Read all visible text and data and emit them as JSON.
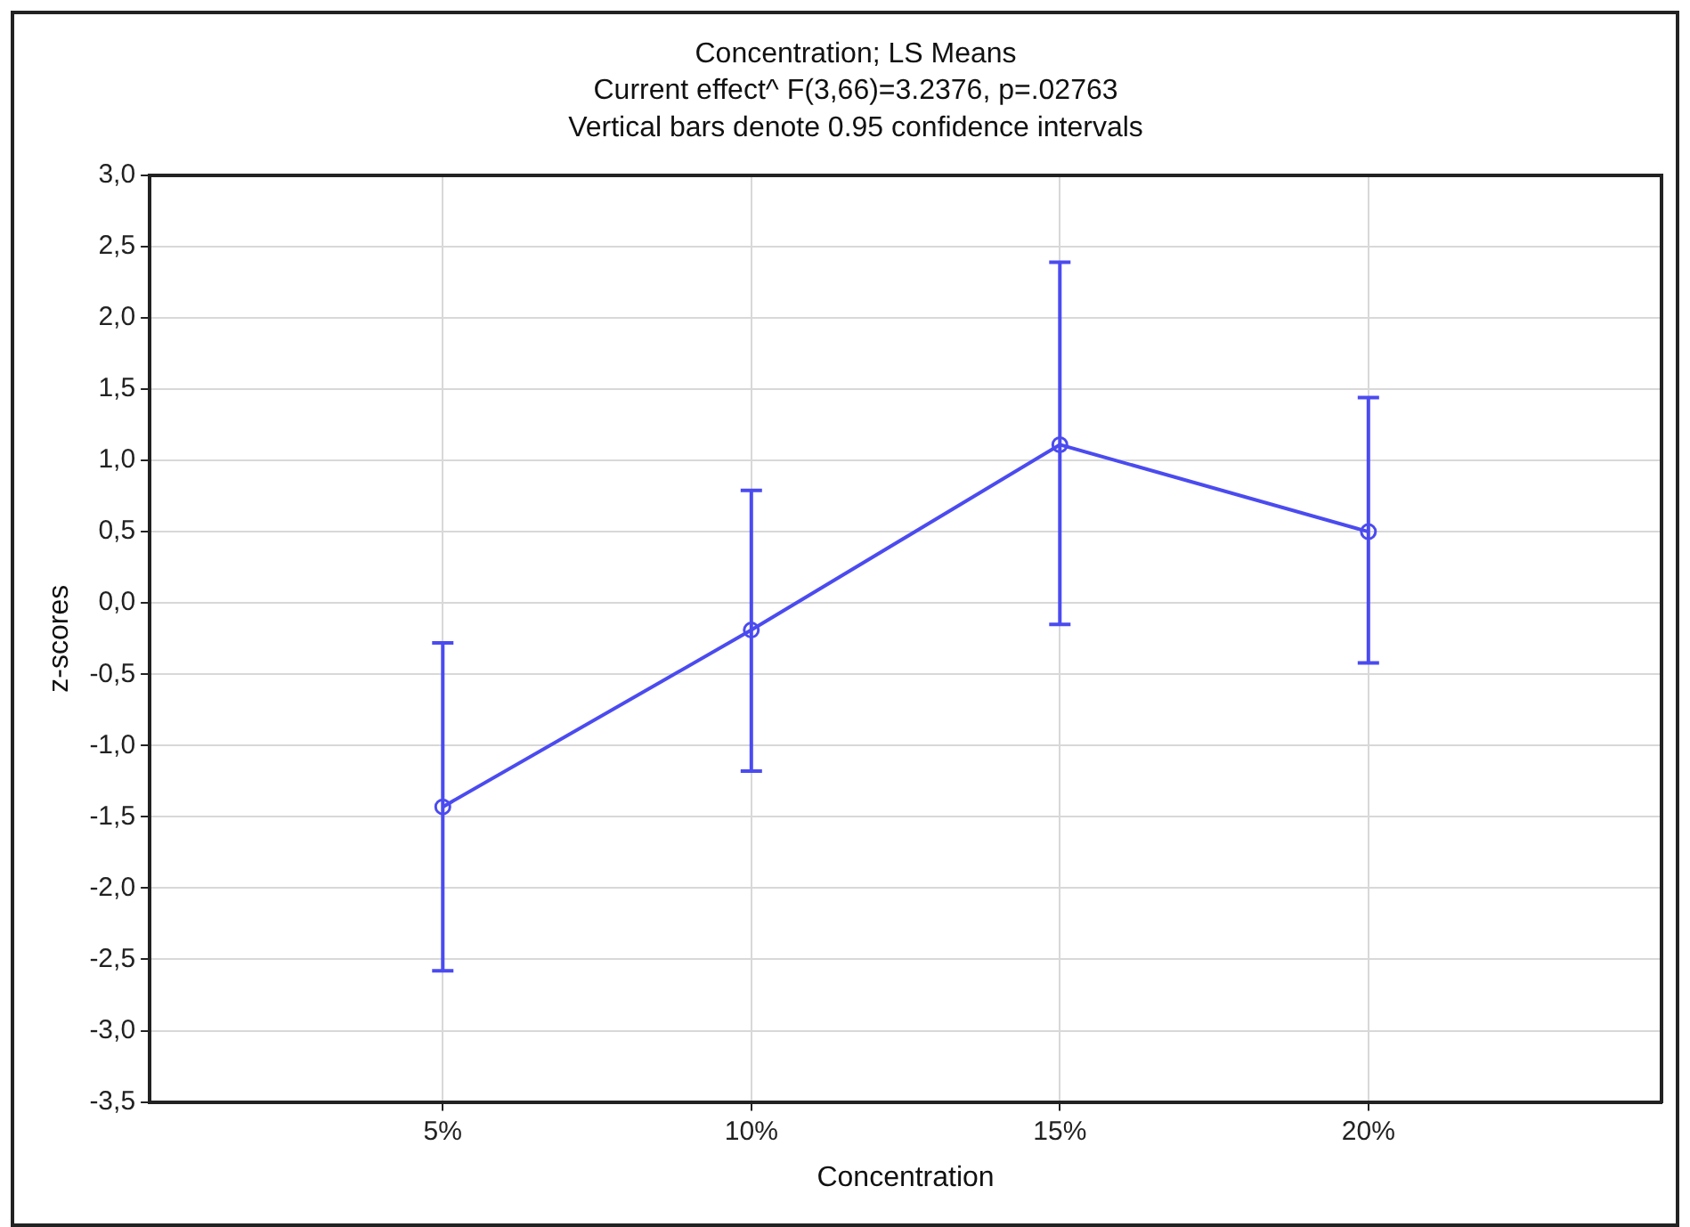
{
  "chart_data": {
    "type": "line",
    "title": "Concentration; LS Means",
    "subtitle": "Current effect^ F(3,66)=3.2376, p=.02763",
    "annotations": [
      "Vertical bars denote 0.95 confidence intervals"
    ],
    "xlabel": "Concentration",
    "ylabel": "z-scores",
    "categories": [
      "5%",
      "10%",
      "15%",
      "20%"
    ],
    "series": [
      {
        "color": "#4b4bf0",
        "values": [
          -1.43,
          -0.19,
          1.11,
          0.5
        ],
        "errors": [
          [
            -2.58,
            -0.28
          ],
          [
            -1.18,
            0.79
          ],
          [
            -0.15,
            2.39
          ],
          [
            -0.42,
            1.44
          ]
        ]
      }
    ],
    "ylim": [
      -3.5,
      3.0
    ],
    "yticks": [
      {
        "value": -3.5,
        "label": "-3,5"
      },
      {
        "value": -3,
        "label": "-3,0"
      },
      {
        "value": -2.5,
        "label": "-2,5"
      },
      {
        "value": -2,
        "label": "-2,0"
      },
      {
        "value": -1.5,
        "label": "-1,5"
      },
      {
        "value": -1,
        "label": "-1,0"
      },
      {
        "value": -0.5,
        "label": "-0,5"
      },
      {
        "value": 0,
        "label": "0,0"
      },
      {
        "value": 0.5,
        "label": "0,5"
      },
      {
        "value": 1,
        "label": "1,0"
      },
      {
        "value": 1.5,
        "label": "1,5"
      },
      {
        "value": 2,
        "label": "2,0"
      },
      {
        "value": 2.5,
        "label": "2,5"
      },
      {
        "value": 3,
        "label": "3,0"
      }
    ],
    "grid": true,
    "legend": false,
    "marker": "circle",
    "line_style": "solid"
  }
}
